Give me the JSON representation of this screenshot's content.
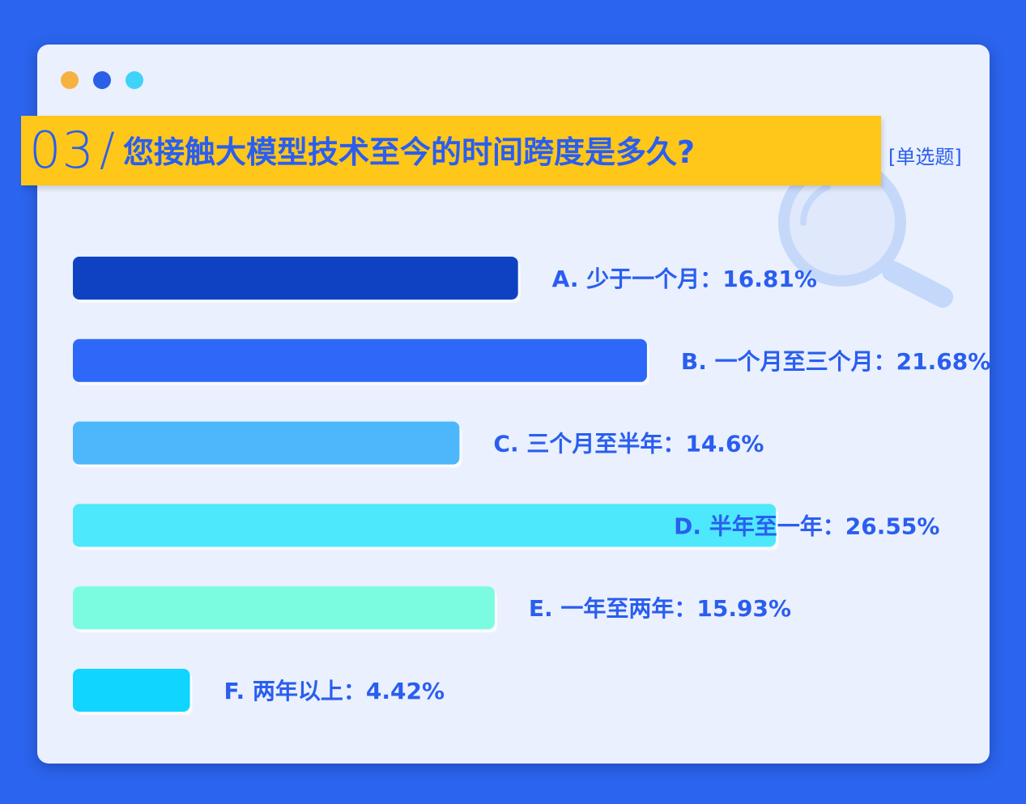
{
  "window": {
    "dots": [
      {
        "name": "orange",
        "color": "#f6b23f"
      },
      {
        "name": "blue",
        "color": "#2b5fe8"
      },
      {
        "name": "cyan",
        "color": "#3fd3f7"
      }
    ]
  },
  "header": {
    "number": "03",
    "slash": "/",
    "question": "您接触大模型技术至今的时间跨度是多久?",
    "tag": "[单选题]",
    "title_bg": "#ffc719"
  },
  "colors": {
    "text": "#2a5ef0",
    "background": "#2b64ee",
    "card": "#eaf0fd"
  },
  "chart_data": {
    "type": "bar",
    "orientation": "horizontal",
    "categories": [
      "A. 少于一个月",
      "B. 一个月至三个月",
      "C. 三个月至半年",
      "D. 半年至一年",
      "E. 一年至两年",
      "F. 两年以上"
    ],
    "values": [
      16.81,
      21.68,
      14.6,
      26.55,
      15.93,
      4.42
    ],
    "labels": [
      "A. 少于一个月：16.81%",
      "B. 一个月至三个月：21.68%",
      "C. 三个月至半年：14.6%",
      "D. 半年至一年：26.55%",
      "E. 一年至两年：15.93%",
      "F. 两年以上：4.42%"
    ],
    "colors": [
      "#0e42c3",
      "#2d68f8",
      "#4db7fc",
      "#4ee8fd",
      "#7bfce0",
      "#10d5ff"
    ],
    "unit": "%",
    "grid": false,
    "legend": "none"
  }
}
